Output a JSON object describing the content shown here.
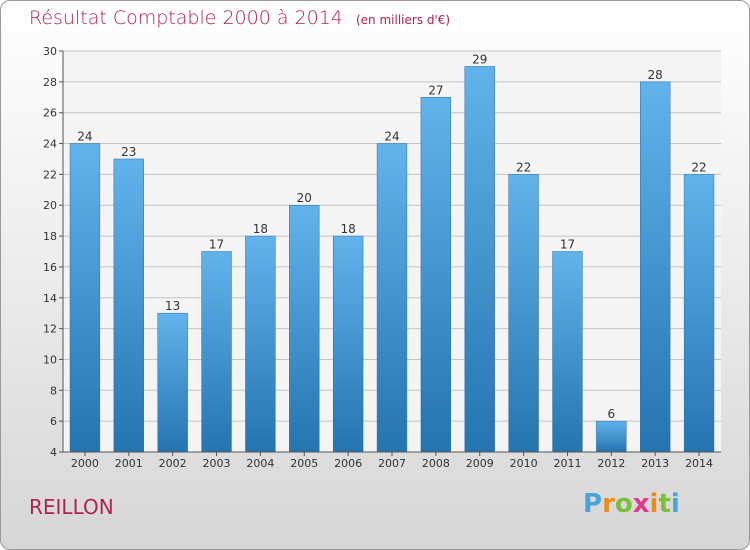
{
  "header": {
    "title": "Résultat Comptable 2000 à 2014",
    "unit": "(en milliers d'€)"
  },
  "footer": {
    "commune": "REILLON",
    "logo": "Proxiti"
  },
  "colors": {
    "title": "#b0224f",
    "bar_top": "#5fb0ea",
    "bar_bottom": "#2777b3",
    "grid": "#bdbdbd"
  },
  "chart_data": {
    "type": "bar",
    "title": "Résultat Comptable 2000 à 2014",
    "subtitle": "(en milliers d'€)",
    "categories": [
      "2000",
      "2001",
      "2002",
      "2003",
      "2004",
      "2005",
      "2006",
      "2007",
      "2008",
      "2009",
      "2010",
      "2011",
      "2012",
      "2013",
      "2014"
    ],
    "values": [
      24,
      23,
      13,
      17,
      18,
      20,
      18,
      24,
      27,
      29,
      22,
      17,
      6,
      28,
      22
    ],
    "ylim": [
      4,
      30
    ],
    "yticks": [
      4,
      6,
      8,
      10,
      12,
      14,
      16,
      18,
      20,
      22,
      24,
      26,
      28,
      30
    ],
    "grid": true,
    "data_labels": true
  }
}
